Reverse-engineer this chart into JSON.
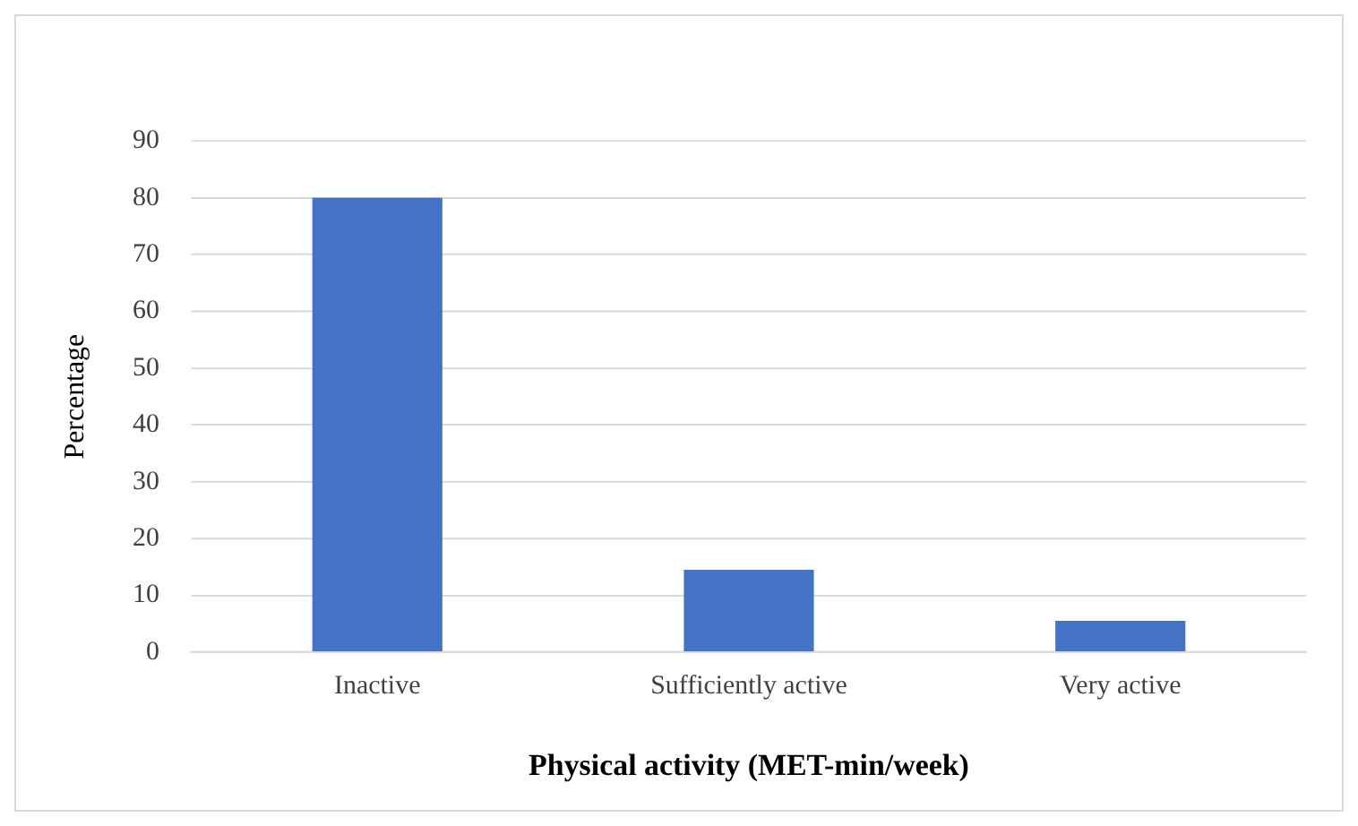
{
  "chart_data": {
    "type": "bar",
    "xlabel": "Physical activity (MET-min/week)",
    "ylabel": "Percentage",
    "categories": [
      "Inactive",
      "Sufficiently active",
      "Very active"
    ],
    "values": [
      80,
      14.5,
      5.5
    ],
    "color": "#4472c4",
    "ylim": [
      0,
      90
    ],
    "yticks": [
      0,
      10,
      20,
      30,
      40,
      50,
      60,
      70,
      80,
      90
    ],
    "grid": "y"
  }
}
